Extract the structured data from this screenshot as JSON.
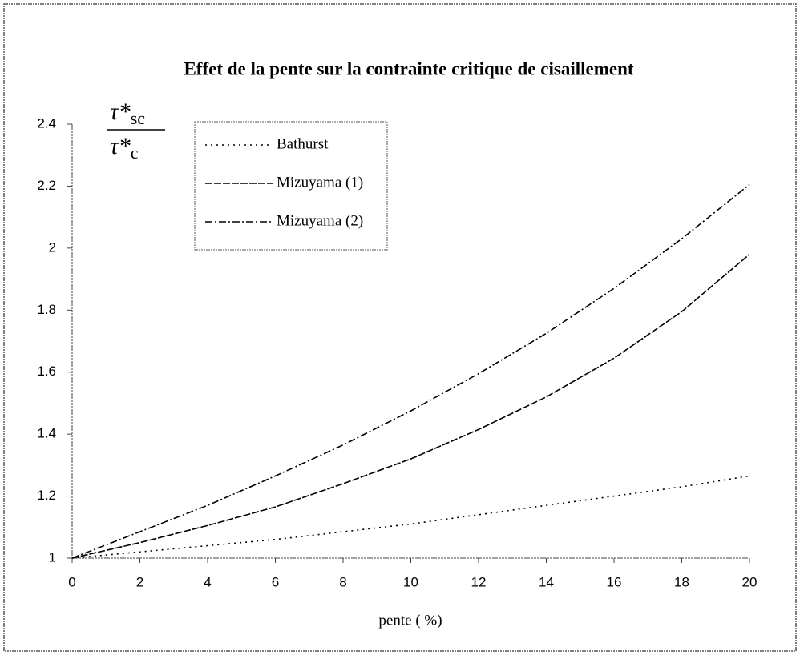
{
  "chart_data": {
    "type": "line",
    "title": "Effet de la pente sur la contrainte critique de cisaillement",
    "xlabel": "pente ( %)",
    "ylabel": {
      "numerator": [
        "τ*",
        "sc"
      ],
      "denominator": [
        "τ*",
        "c"
      ]
    },
    "x": [
      0,
      2,
      4,
      6,
      8,
      10,
      12,
      14,
      16,
      18,
      20
    ],
    "series": [
      {
        "name": "Bathurst",
        "color": "#000000",
        "dash": "2,5",
        "values": [
          1,
          1.02,
          1.04,
          1.06,
          1.085,
          1.11,
          1.14,
          1.17,
          1.2,
          1.23,
          1.265
        ]
      },
      {
        "name": "Mizuyama (1)",
        "color": "#000000",
        "dash": "9,2",
        "values": [
          1,
          1.05,
          1.105,
          1.165,
          1.24,
          1.32,
          1.415,
          1.52,
          1.645,
          1.795,
          1.98
        ]
      },
      {
        "name": "Mizuyama (2)",
        "color": "#000000",
        "dash": "9,3,2,3",
        "values": [
          1,
          1.085,
          1.17,
          1.265,
          1.365,
          1.475,
          1.595,
          1.725,
          1.87,
          2.03,
          2.205
        ]
      }
    ],
    "xlim": [
      0,
      20
    ],
    "xticks": [
      0,
      2,
      4,
      6,
      8,
      10,
      12,
      14,
      16,
      18,
      20
    ],
    "ylim": [
      1,
      2.4
    ],
    "yticks": [
      1,
      1.2,
      1.4,
      1.6,
      1.8,
      2,
      2.2,
      2.4
    ],
    "grid": false,
    "legend": "upper left"
  }
}
